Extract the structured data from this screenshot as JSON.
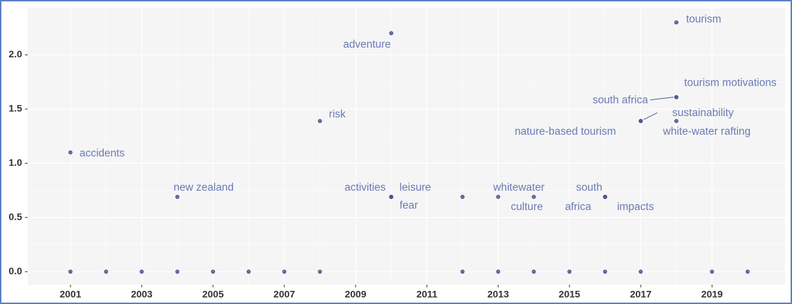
{
  "chart_data": {
    "type": "scatter",
    "x": [
      2001,
      2002,
      2003,
      2004,
      2005,
      2006,
      2007,
      2008,
      2012,
      2013,
      2014,
      2015,
      2016,
      2017,
      2019,
      2020,
      2001,
      2004,
      2008,
      2010,
      2010,
      2010,
      2010,
      2012,
      2013,
      2014,
      2016,
      2016,
      2016,
      2017,
      2017,
      2018,
      2018,
      2018,
      2018
    ],
    "values": [
      0,
      0,
      0,
      0,
      0,
      0,
      0,
      0,
      0,
      0,
      0,
      0,
      0,
      0,
      0,
      0,
      1.1,
      0.69,
      1.39,
      2.2,
      0.69,
      0.69,
      0.69,
      0.69,
      0.69,
      0.69,
      0.69,
      0.69,
      0.69,
      1.39,
      1.39,
      1.39,
      1.61,
      1.61,
      2.3
    ],
    "labels": [
      null,
      null,
      null,
      null,
      null,
      null,
      null,
      null,
      null,
      null,
      null,
      null,
      null,
      null,
      null,
      null,
      "accidents",
      "new zealand",
      "risk",
      "adventure",
      "activities",
      "leisure",
      "fear",
      null,
      "whitewater",
      "culture",
      "south",
      "africa",
      "impacts",
      "nature-based tourism",
      "sustainability",
      "white-water rafting",
      "south africa",
      "tourism motivations",
      "tourism"
    ],
    "color": "#4a5a9a",
    "label_color": "#6a7ab8",
    "xlim": [
      1999.8,
      2021.05
    ],
    "xticks": [
      2001,
      2003,
      2005,
      2007,
      2009,
      2011,
      2013,
      2015,
      2017,
      2019
    ],
    "ylim": [
      -0.12,
      2.43
    ],
    "yticks": [
      {
        "value": 0,
        "label": "0.0"
      },
      {
        "value": 0.5,
        "label": "0.5"
      },
      {
        "value": 1,
        "label": "1.0"
      },
      {
        "value": 1.5,
        "label": "1.5"
      },
      {
        "value": 2,
        "label": "2.0"
      }
    ],
    "grid": true
  }
}
